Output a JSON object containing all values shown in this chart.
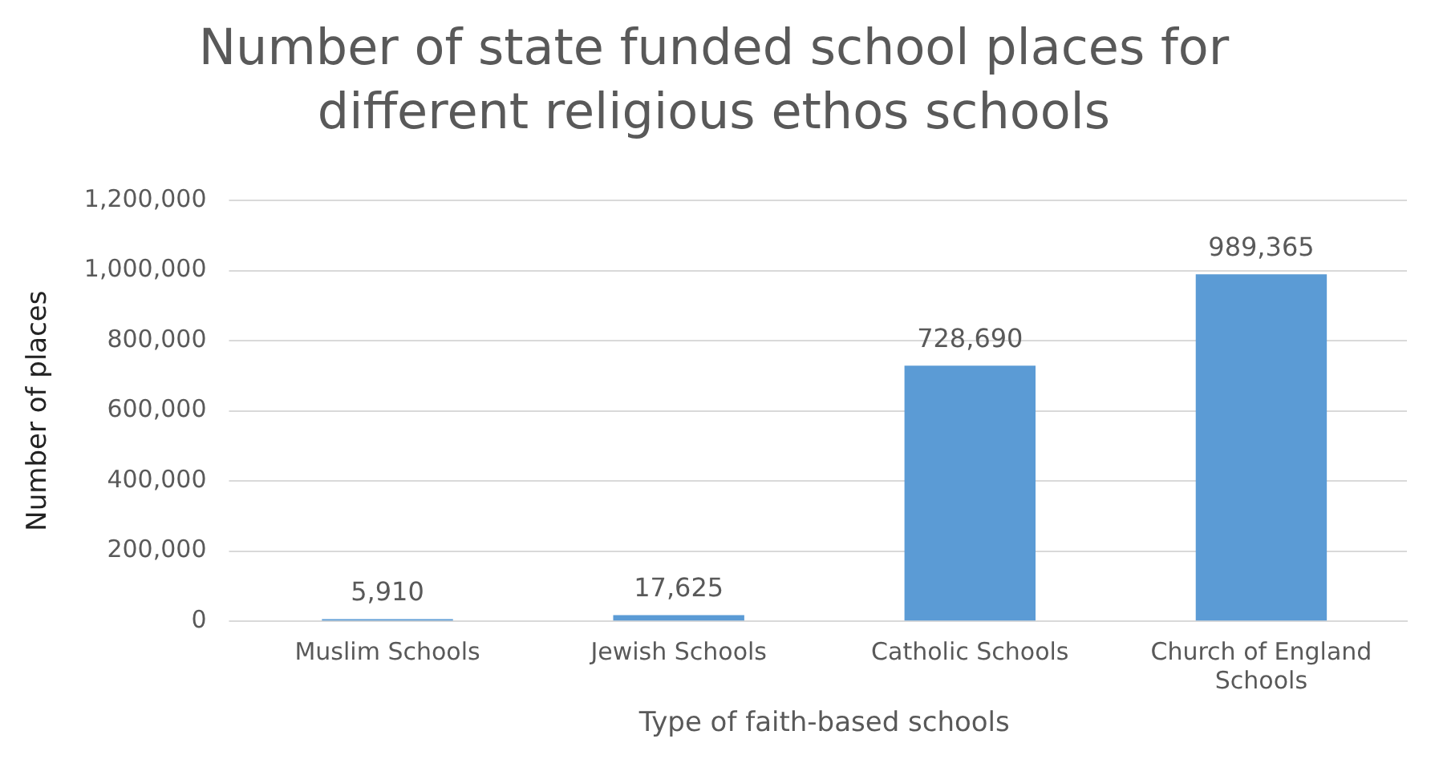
{
  "chart_data": {
    "type": "bar",
    "title": "Number of state funded school places for different religious ethos schools",
    "xlabel": "Type of faith-based schools",
    "ylabel": "Number of places",
    "categories": [
      "Muslim Schools",
      "Jewish Schools",
      "Catholic Schools",
      "Church of England Schools"
    ],
    "values": [
      5910,
      17625,
      728690,
      989365
    ],
    "value_labels": [
      "5,910",
      "17,625",
      "728,690",
      "989,365"
    ],
    "color": "#5b9bd5",
    "ylim": [
      0,
      1200000
    ],
    "yticks": [
      0,
      {
        "value": 200000,
        "label": "200,000"
      },
      {
        "value": 400000,
        "label": "400,000"
      },
      {
        "value": 600000,
        "label": "600,000"
      },
      {
        "value": 800000,
        "label": "800,000"
      },
      {
        "value": 1000000,
        "label": "1,000,000"
      },
      {
        "value": 1200000,
        "label": "1,200,000"
      }
    ],
    "grid": "y"
  }
}
